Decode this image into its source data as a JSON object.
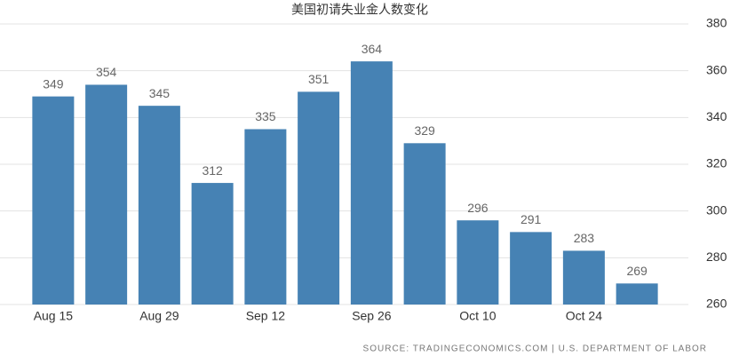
{
  "chart_data": {
    "type": "bar",
    "title": "美国初请失业金人数变化",
    "categories": [
      "Aug 15",
      null,
      "Aug 29",
      null,
      "Sep 12",
      null,
      "Sep 26",
      null,
      "Oct 10",
      null,
      "Oct 24",
      null
    ],
    "values": [
      349,
      354,
      345,
      312,
      335,
      351,
      364,
      329,
      296,
      291,
      283,
      269
    ],
    "color": "#4682b4",
    "ylim": [
      260,
      380
    ],
    "yticks": [
      260,
      280,
      300,
      320,
      340,
      360,
      380
    ],
    "grid": true,
    "source": "SOURCE: TRADINGECONOMICS.COM | U.S. DEPARTMENT OF LABOR"
  }
}
